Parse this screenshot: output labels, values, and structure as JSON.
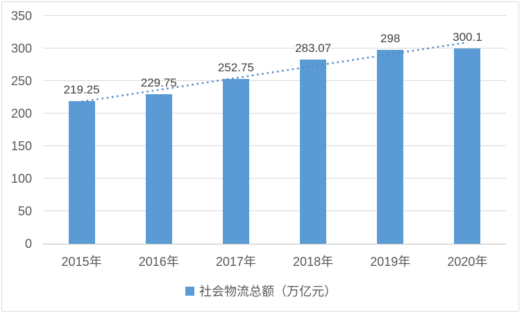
{
  "chart_data": {
    "type": "bar",
    "title": "",
    "categories": [
      "2015年",
      "2016年",
      "2017年",
      "2018年",
      "2019年",
      "2020年"
    ],
    "series": [
      {
        "name": "社会物流总额（万亿元）",
        "values": [
          219.25,
          229.75,
          252.75,
          283.07,
          298,
          300.1
        ],
        "labels": [
          "219.25",
          "229.75",
          "252.75",
          "283.07",
          "298",
          "300.1"
        ]
      }
    ],
    "legend": {
      "label": "社会物流总额（万亿元）",
      "position": "bottom"
    },
    "y_axis": {
      "min": 0,
      "max": 350,
      "interval": 50,
      "ticks": [
        350,
        300,
        250,
        200,
        150,
        100,
        50,
        0
      ]
    },
    "x_axis": {
      "label": ""
    },
    "trendline": {
      "type": "linear",
      "style": "dotted"
    },
    "grid": true,
    "colors": {
      "bar": "#5b9bd5",
      "trendline": "#4e87c8",
      "gridline": "#d9d9d9",
      "axis_line": "#bfbfbf",
      "tick_text": "#595959",
      "data_label_text": "#404040",
      "legend_text": "#595959",
      "border": "#d9d9d9",
      "background": "#ffffff"
    }
  }
}
